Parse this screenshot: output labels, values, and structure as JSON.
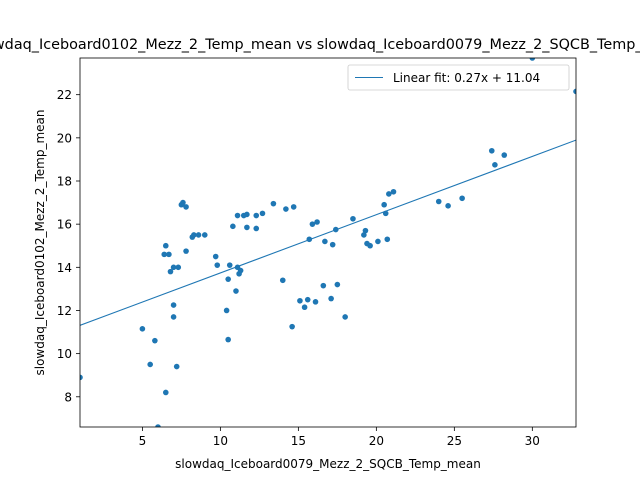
{
  "chart_data": {
    "type": "scatter",
    "title": "slowdaq_Iceboard0102_Mezz_2_Temp_mean vs slowdaq_Iceboard0079_Mezz_2_SQCB_Temp_mean",
    "xlabel": "slowdaq_Iceboard0079_Mezz_2_SQCB_Temp_mean",
    "ylabel": "slowdaq_Iceboard0102_Mezz_2_Temp_mean",
    "xlim": [
      1,
      32.8
    ],
    "ylim": [
      6.6,
      23.7
    ],
    "xticks": [
      5,
      10,
      15,
      20,
      25,
      30
    ],
    "yticks": [
      8,
      10,
      12,
      14,
      16,
      18,
      20,
      22
    ],
    "grid": false,
    "legend_position": "top-right",
    "series": [
      {
        "type": "scatter",
        "color": "#1f77b4",
        "points": [
          [
            1.0,
            8.9
          ],
          [
            5.0,
            11.15
          ],
          [
            5.5,
            9.5
          ],
          [
            5.8,
            10.6
          ],
          [
            6.0,
            6.6
          ],
          [
            6.5,
            8.2
          ],
          [
            6.4,
            14.6
          ],
          [
            6.5,
            15.0
          ],
          [
            6.7,
            14.6
          ],
          [
            6.8,
            13.8
          ],
          [
            7.0,
            14.0
          ],
          [
            7.0,
            12.25
          ],
          [
            7.0,
            11.7
          ],
          [
            7.2,
            9.4
          ],
          [
            7.3,
            14.0
          ],
          [
            7.5,
            16.9
          ],
          [
            7.6,
            17.0
          ],
          [
            7.8,
            16.8
          ],
          [
            7.8,
            14.75
          ],
          [
            8.2,
            15.4
          ],
          [
            8.3,
            15.5
          ],
          [
            8.6,
            15.5
          ],
          [
            9.0,
            15.5
          ],
          [
            9.7,
            14.5
          ],
          [
            9.8,
            14.1
          ],
          [
            10.4,
            12.0
          ],
          [
            10.5,
            13.45
          ],
          [
            10.6,
            14.1
          ],
          [
            10.5,
            10.65
          ],
          [
            10.8,
            15.9
          ],
          [
            11.0,
            12.9
          ],
          [
            11.1,
            14.0
          ],
          [
            11.1,
            16.4
          ],
          [
            11.2,
            13.7
          ],
          [
            11.3,
            13.85
          ],
          [
            11.5,
            16.4
          ],
          [
            11.7,
            16.45
          ],
          [
            11.7,
            15.85
          ],
          [
            12.3,
            16.4
          ],
          [
            12.3,
            15.8
          ],
          [
            12.7,
            16.5
          ],
          [
            13.4,
            16.95
          ],
          [
            14.0,
            13.4
          ],
          [
            14.2,
            16.7
          ],
          [
            14.6,
            11.25
          ],
          [
            14.7,
            16.8
          ],
          [
            15.1,
            12.45
          ],
          [
            15.4,
            12.15
          ],
          [
            15.6,
            12.5
          ],
          [
            15.7,
            15.3
          ],
          [
            15.9,
            16.0
          ],
          [
            16.1,
            12.4
          ],
          [
            16.2,
            16.1
          ],
          [
            16.6,
            13.15
          ],
          [
            16.7,
            15.2
          ],
          [
            17.1,
            12.55
          ],
          [
            17.2,
            15.05
          ],
          [
            17.4,
            15.75
          ],
          [
            17.5,
            13.2
          ],
          [
            18.0,
            11.7
          ],
          [
            18.5,
            16.25
          ],
          [
            19.2,
            15.5
          ],
          [
            19.3,
            15.7
          ],
          [
            19.4,
            15.1
          ],
          [
            19.6,
            15.0
          ],
          [
            20.1,
            15.2
          ],
          [
            20.5,
            16.9
          ],
          [
            20.6,
            16.5
          ],
          [
            20.7,
            15.3
          ],
          [
            20.8,
            17.4
          ],
          [
            21.1,
            17.5
          ],
          [
            24.0,
            17.05
          ],
          [
            24.6,
            16.85
          ],
          [
            25.5,
            17.2
          ],
          [
            27.4,
            19.4
          ],
          [
            27.6,
            18.75
          ],
          [
            28.2,
            19.2
          ],
          [
            30.0,
            23.7
          ],
          [
            32.8,
            22.15
          ]
        ]
      },
      {
        "type": "line",
        "name": "Linear fit: 0.27x + 11.04",
        "color": "#1f77b4",
        "slope": 0.27,
        "intercept": 11.04
      }
    ]
  }
}
